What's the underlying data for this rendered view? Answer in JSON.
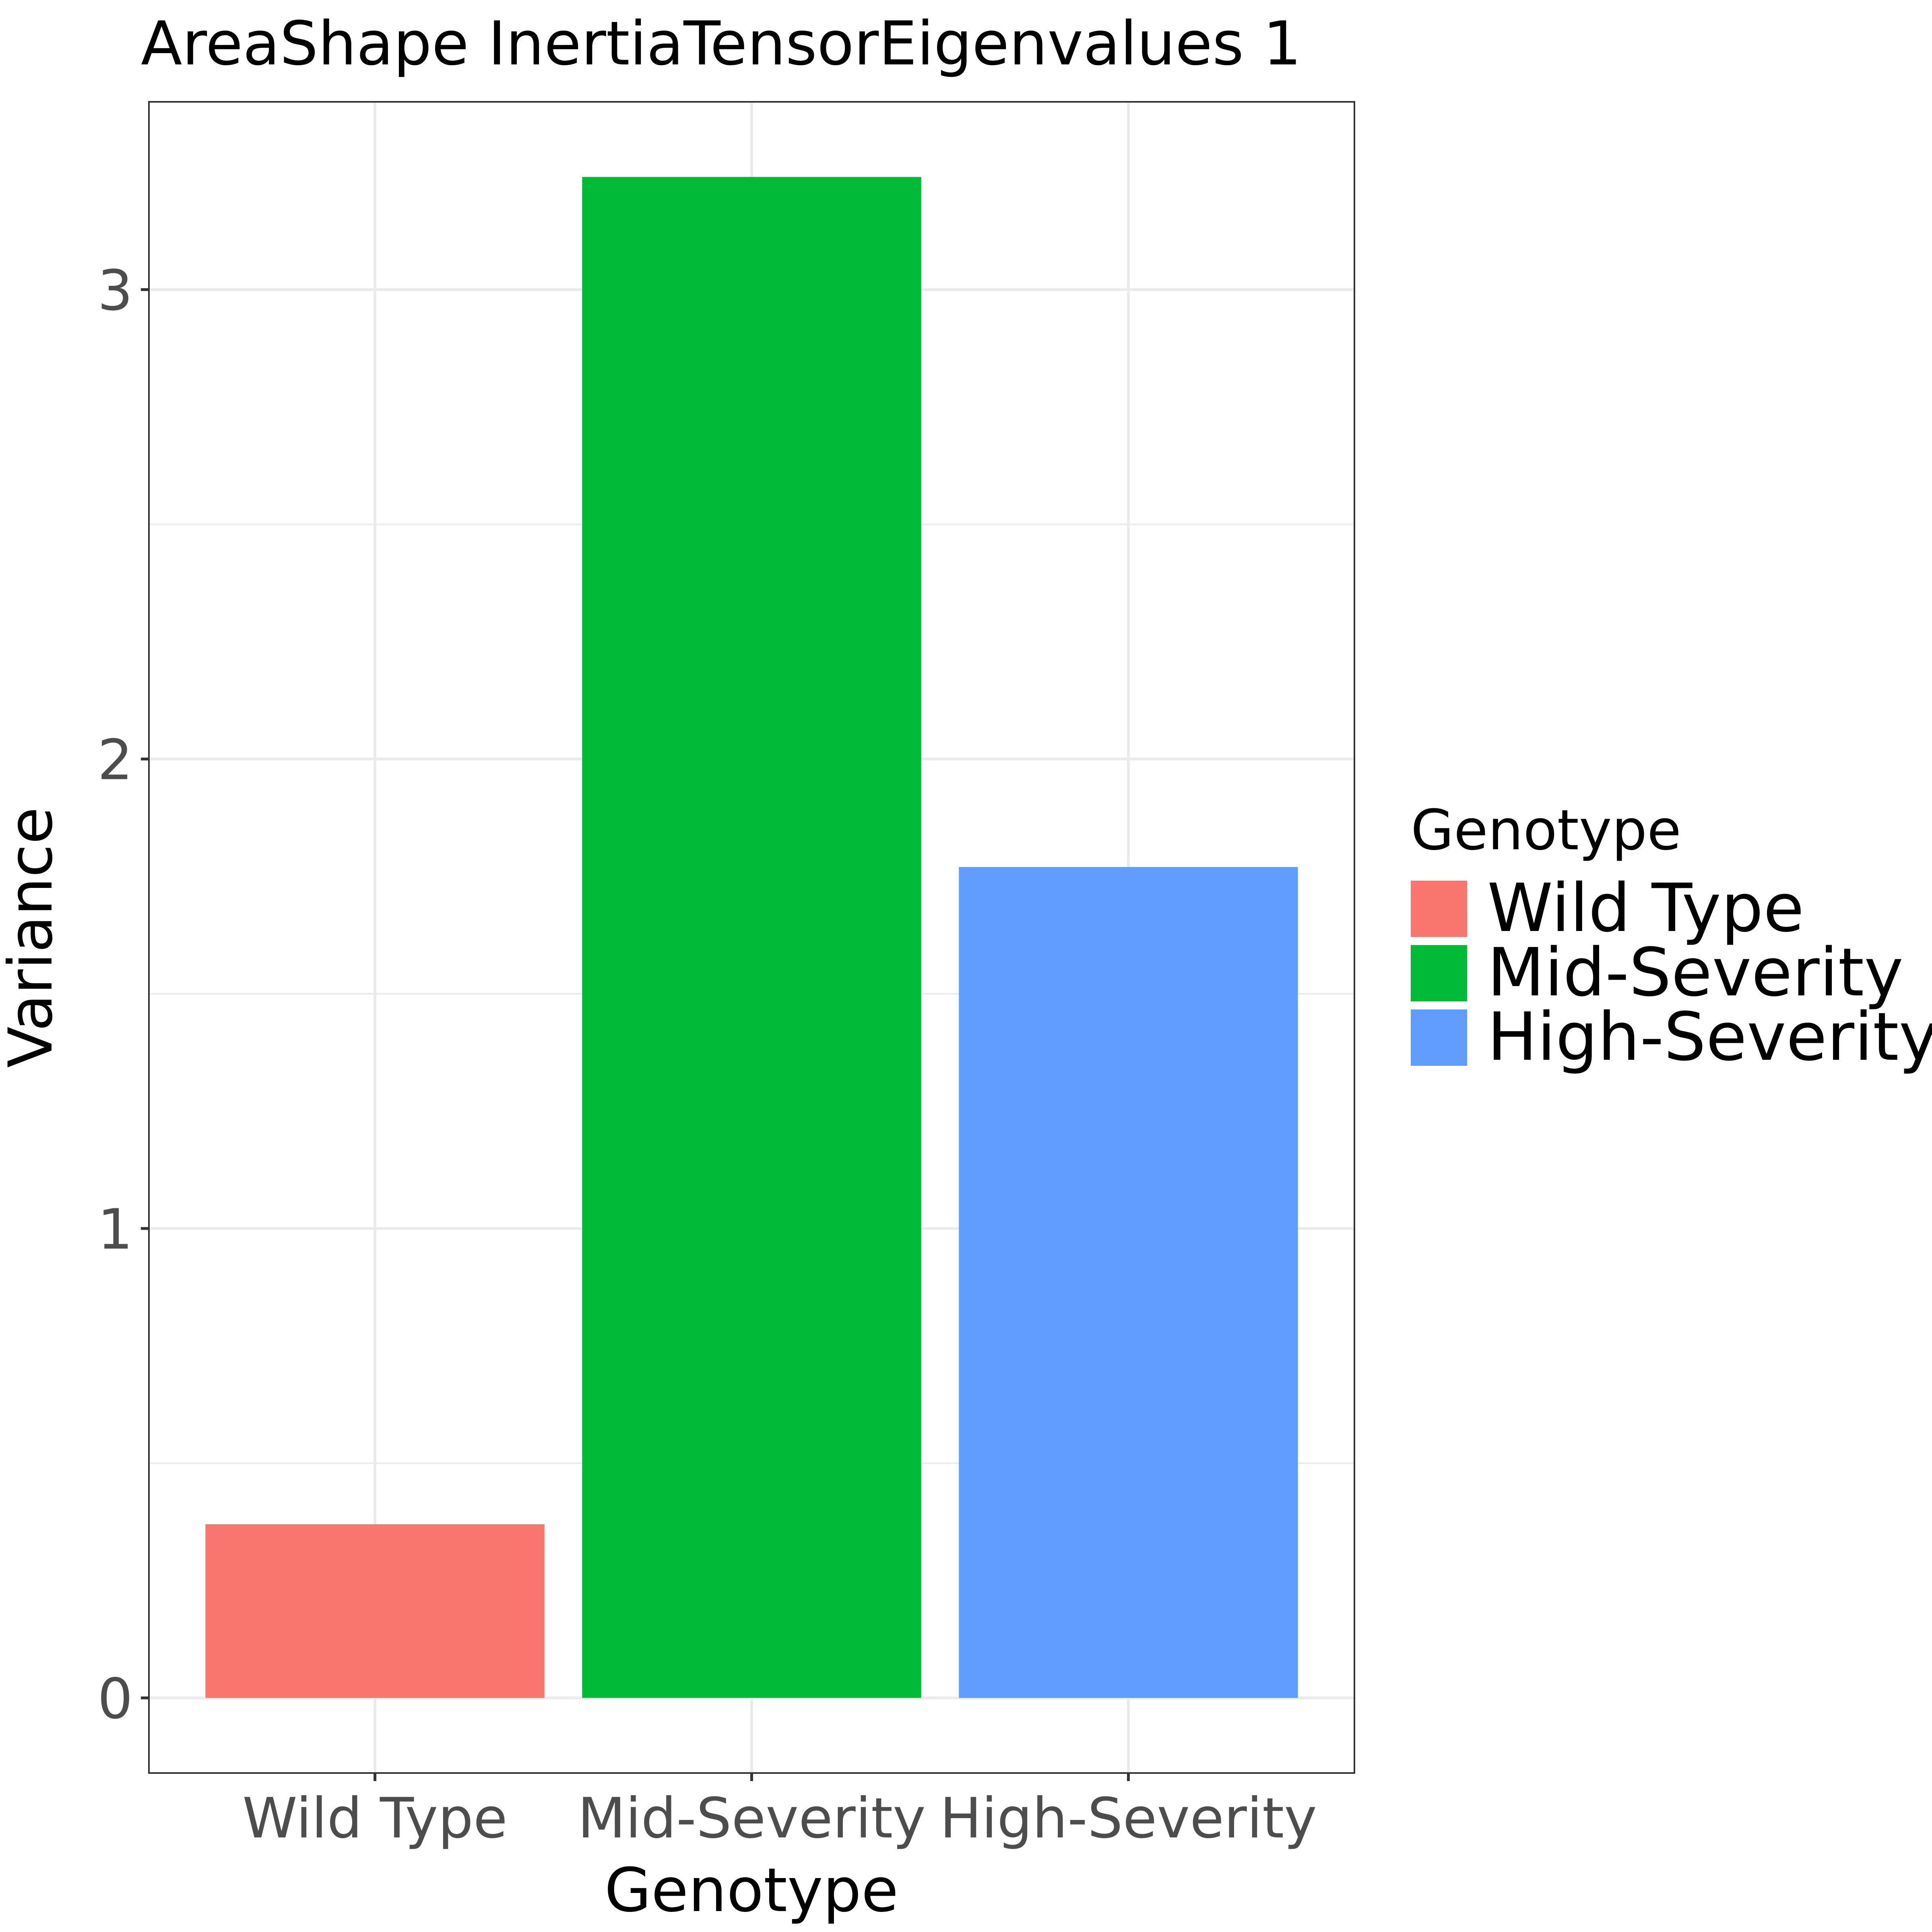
{
  "chart_data": {
    "type": "bar",
    "title": "AreaShape InertiaTensorEigenvalues 1",
    "xlabel": "Genotype",
    "ylabel": "Variance",
    "categories": [
      "Wild Type",
      "Mid-Severity",
      "High-Severity"
    ],
    "values": [
      0.37,
      3.24,
      1.77
    ],
    "colors": [
      "#F8766D",
      "#00BA38",
      "#619CFF"
    ],
    "ylim": [
      -0.16,
      3.4
    ],
    "yticks": [
      0,
      1,
      2,
      3
    ],
    "grid": true,
    "legend": {
      "title": "Genotype",
      "placement": "right",
      "entries": [
        "Wild Type",
        "Mid-Severity",
        "High-Severity"
      ]
    }
  }
}
